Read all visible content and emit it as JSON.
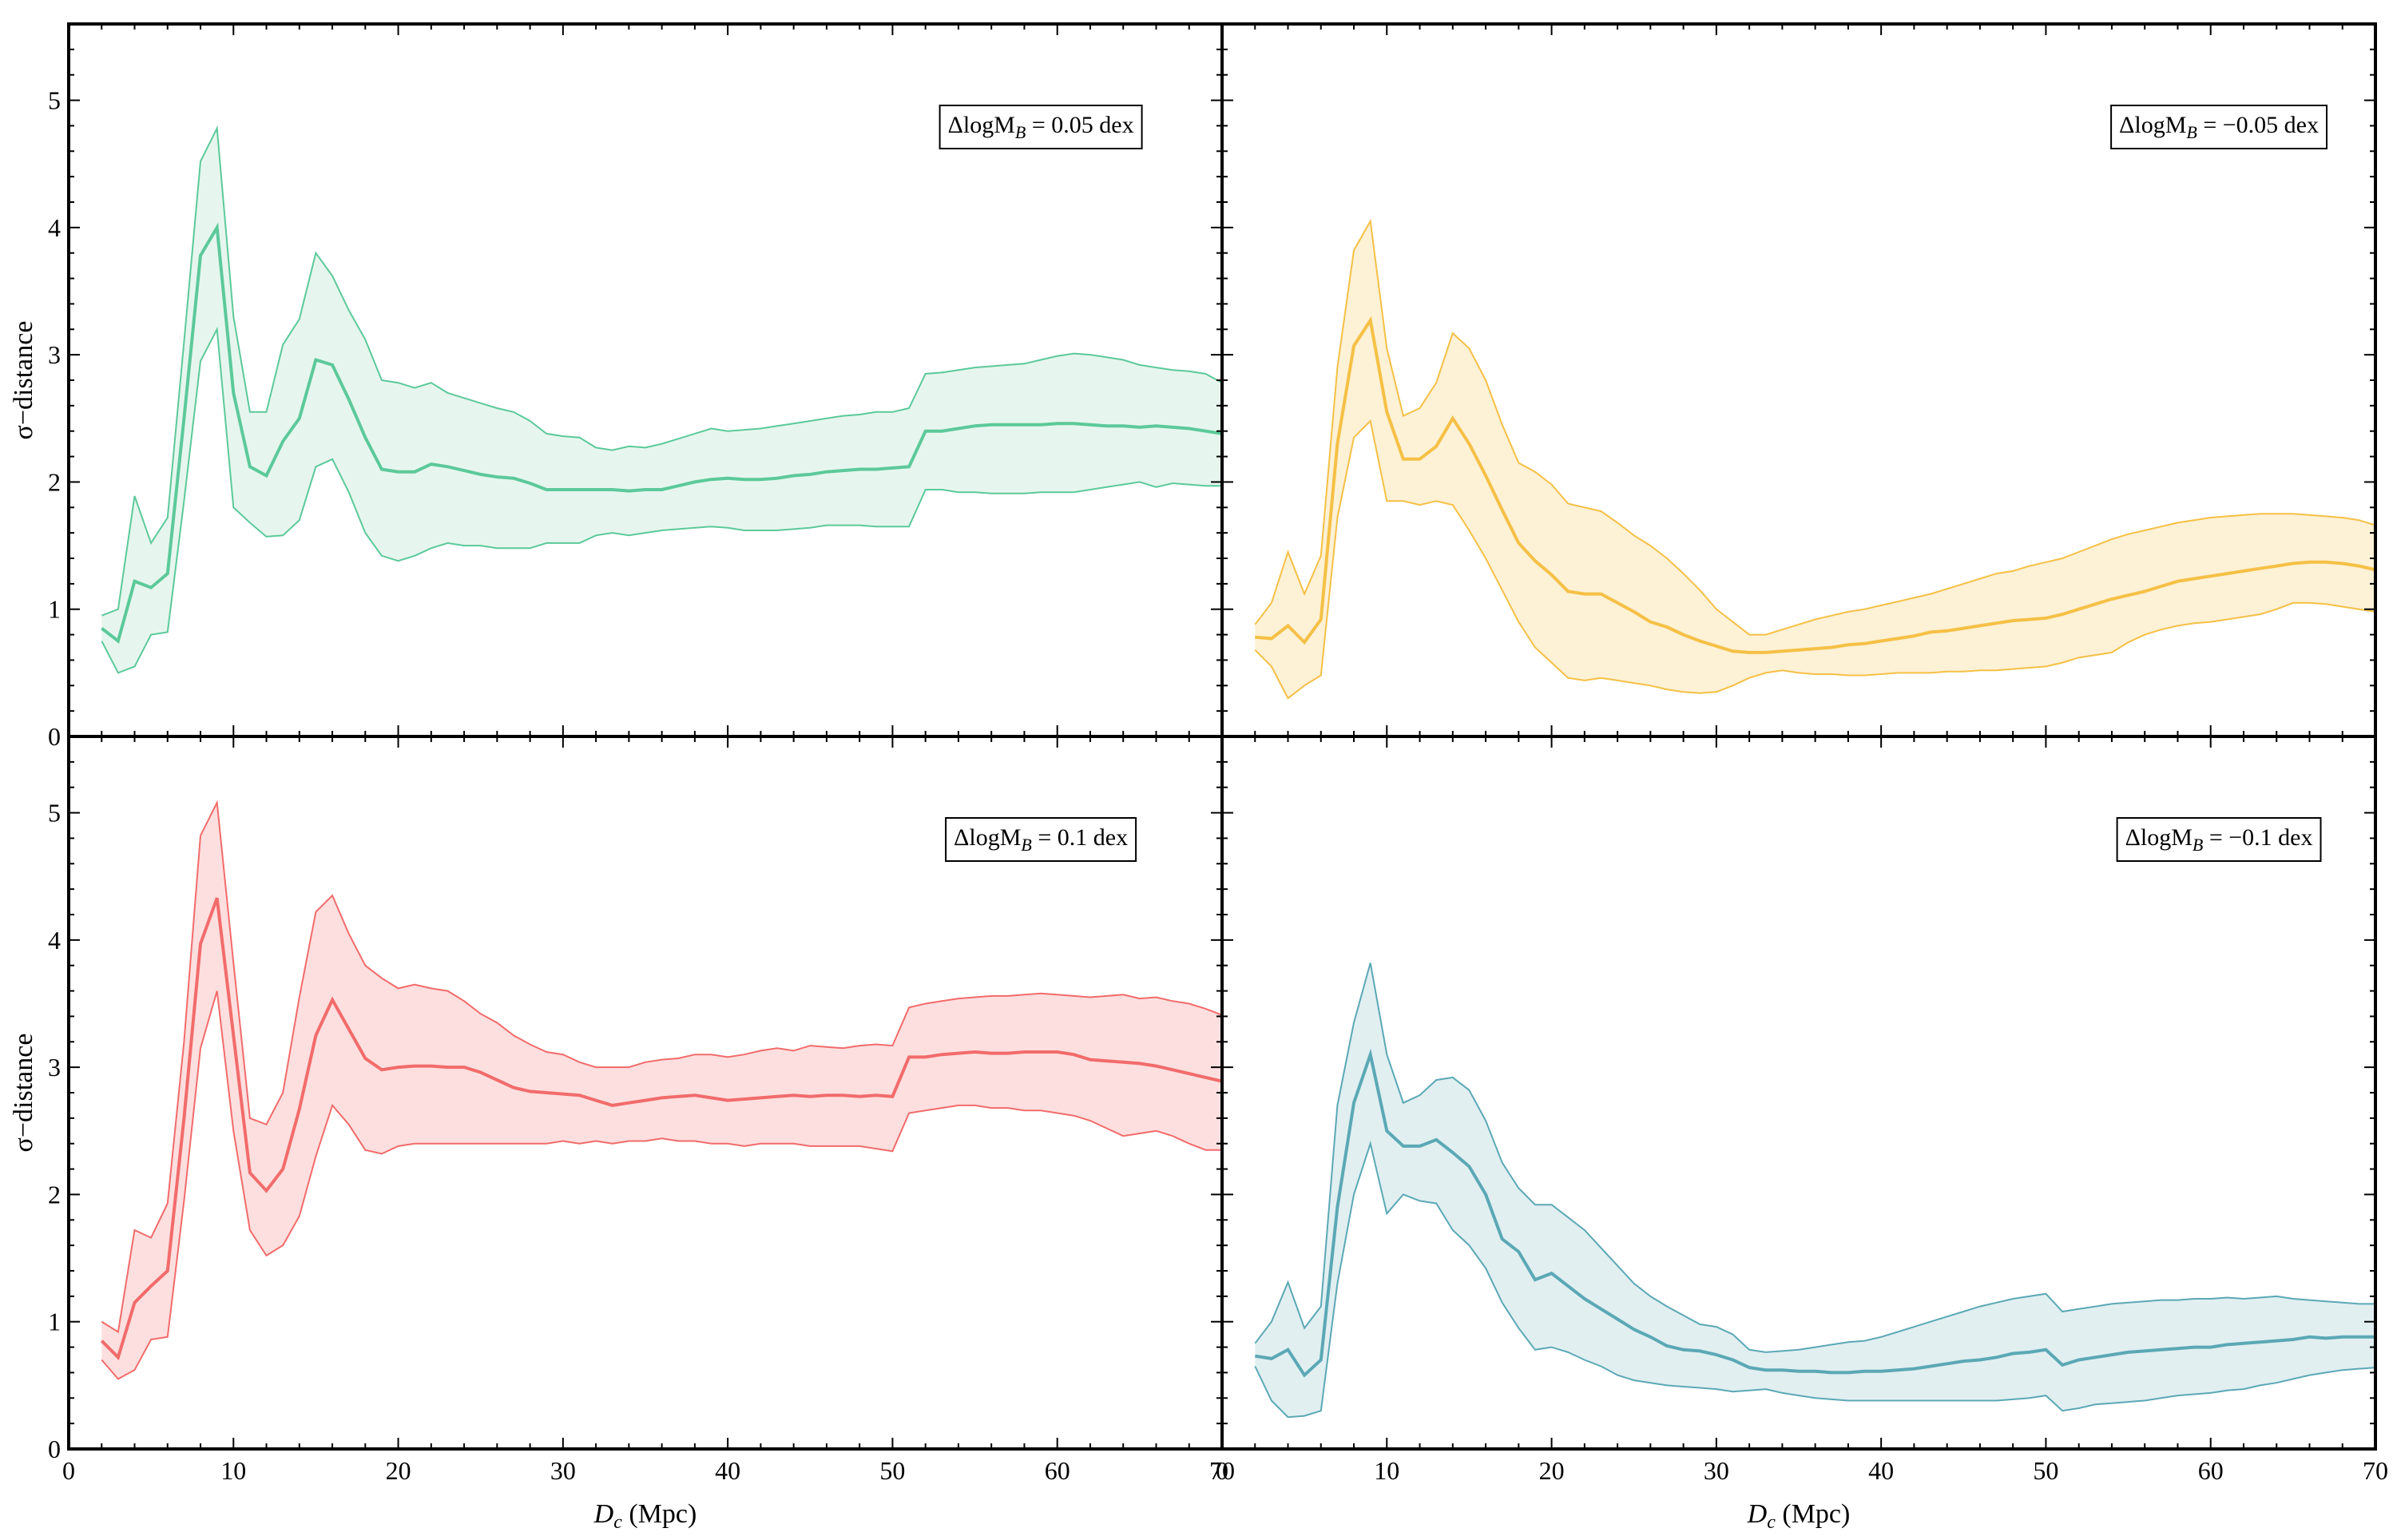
{
  "chart_data": {
    "type": "area",
    "layout": "2x2 grid, shared axes",
    "xlim": [
      0,
      70
    ],
    "ylim": [
      0,
      5.6
    ],
    "x_ticks": [
      "0",
      "10",
      "20",
      "30",
      "40",
      "50",
      "60",
      "70"
    ],
    "y_ticks": [
      "0",
      "1",
      "2",
      "3",
      "4",
      "5"
    ],
    "xlabel": {
      "var": "D",
      "sub": "c",
      "unit": " (Mpc)"
    },
    "ylabel": "σ−distance",
    "x": [
      2,
      3,
      4,
      5,
      6,
      7,
      8,
      9,
      10,
      11,
      12,
      13,
      14,
      15,
      16,
      17,
      18,
      19,
      20,
      21,
      22,
      23,
      24,
      25,
      26,
      27,
      28,
      29,
      30,
      31,
      32,
      33,
      34,
      35,
      36,
      37,
      38,
      39,
      40,
      41,
      42,
      43,
      44,
      45,
      46,
      47,
      48,
      49,
      50,
      51,
      52,
      53,
      54,
      55,
      56,
      57,
      58,
      59,
      60,
      61,
      62,
      63,
      64,
      65,
      66,
      67,
      68,
      69,
      70
    ],
    "panels": [
      {
        "position": "top-left",
        "color": "#5cc99a",
        "fill": "#e6f6ee",
        "annotation": {
          "prefix": "ΔlogM",
          "sub": "B",
          "suffix": " = 0.05 dex"
        },
        "median": [
          0.85,
          0.75,
          1.22,
          1.17,
          1.28,
          2.5,
          3.78,
          4.0,
          2.7,
          2.12,
          2.05,
          2.32,
          2.5,
          2.96,
          2.92,
          2.65,
          2.35,
          2.1,
          2.08,
          2.08,
          2.14,
          2.12,
          2.09,
          2.06,
          2.04,
          2.03,
          1.99,
          1.94,
          1.94,
          1.94,
          1.94,
          1.94,
          1.93,
          1.94,
          1.94,
          1.97,
          2.0,
          2.02,
          2.03,
          2.02,
          2.02,
          2.03,
          2.05,
          2.06,
          2.08,
          2.09,
          2.1,
          2.1,
          2.11,
          2.12,
          2.4,
          2.4,
          2.42,
          2.44,
          2.45,
          2.45,
          2.45,
          2.45,
          2.46,
          2.46,
          2.45,
          2.44,
          2.44,
          2.43,
          2.44,
          2.43,
          2.42,
          2.4,
          2.38
        ],
        "upper": [
          0.95,
          1.0,
          1.89,
          1.52,
          1.72,
          3.1,
          4.52,
          4.78,
          3.3,
          2.55,
          2.55,
          3.08,
          3.28,
          3.8,
          3.62,
          3.35,
          3.12,
          2.8,
          2.78,
          2.74,
          2.78,
          2.7,
          2.66,
          2.62,
          2.58,
          2.55,
          2.48,
          2.38,
          2.36,
          2.35,
          2.27,
          2.25,
          2.28,
          2.27,
          2.3,
          2.34,
          2.38,
          2.42,
          2.4,
          2.41,
          2.42,
          2.44,
          2.46,
          2.48,
          2.5,
          2.52,
          2.53,
          2.55,
          2.55,
          2.58,
          2.85,
          2.86,
          2.88,
          2.9,
          2.91,
          2.92,
          2.93,
          2.96,
          2.99,
          3.01,
          3.0,
          2.98,
          2.96,
          2.92,
          2.9,
          2.88,
          2.87,
          2.85,
          2.78
        ],
        "lower": [
          0.75,
          0.5,
          0.55,
          0.8,
          0.82,
          1.85,
          2.95,
          3.2,
          1.8,
          1.68,
          1.57,
          1.58,
          1.7,
          2.12,
          2.18,
          1.92,
          1.6,
          1.42,
          1.38,
          1.42,
          1.48,
          1.52,
          1.5,
          1.5,
          1.48,
          1.48,
          1.48,
          1.52,
          1.52,
          1.52,
          1.58,
          1.6,
          1.58,
          1.6,
          1.62,
          1.63,
          1.64,
          1.65,
          1.64,
          1.62,
          1.62,
          1.62,
          1.63,
          1.64,
          1.66,
          1.66,
          1.66,
          1.65,
          1.65,
          1.65,
          1.94,
          1.94,
          1.92,
          1.92,
          1.91,
          1.91,
          1.91,
          1.92,
          1.92,
          1.92,
          1.94,
          1.96,
          1.98,
          2.0,
          1.96,
          1.99,
          1.98,
          1.97,
          1.97
        ]
      },
      {
        "position": "top-right",
        "color": "#f5c045",
        "fill": "#fdf1d6",
        "annotation": {
          "prefix": "ΔlogM",
          "sub": "B",
          "suffix": " = −0.05 dex"
        },
        "median": [
          0.78,
          0.77,
          0.87,
          0.74,
          0.92,
          2.3,
          3.07,
          3.27,
          2.55,
          2.18,
          2.18,
          2.28,
          2.5,
          2.3,
          2.05,
          1.78,
          1.52,
          1.38,
          1.27,
          1.14,
          1.12,
          1.12,
          1.05,
          0.98,
          0.9,
          0.86,
          0.8,
          0.75,
          0.71,
          0.67,
          0.66,
          0.66,
          0.67,
          0.68,
          0.69,
          0.7,
          0.72,
          0.73,
          0.75,
          0.77,
          0.79,
          0.82,
          0.83,
          0.85,
          0.87,
          0.89,
          0.91,
          0.92,
          0.93,
          0.96,
          1.0,
          1.04,
          1.08,
          1.11,
          1.14,
          1.18,
          1.22,
          1.24,
          1.26,
          1.28,
          1.3,
          1.32,
          1.34,
          1.36,
          1.37,
          1.37,
          1.36,
          1.34,
          1.31
        ],
        "upper": [
          0.88,
          1.05,
          1.45,
          1.12,
          1.42,
          2.9,
          3.82,
          4.05,
          3.05,
          2.52,
          2.58,
          2.78,
          3.17,
          3.05,
          2.8,
          2.45,
          2.15,
          2.08,
          1.98,
          1.83,
          1.8,
          1.77,
          1.68,
          1.58,
          1.5,
          1.4,
          1.28,
          1.15,
          1.0,
          0.9,
          0.8,
          0.8,
          0.84,
          0.88,
          0.92,
          0.95,
          0.98,
          1.0,
          1.03,
          1.06,
          1.09,
          1.12,
          1.16,
          1.2,
          1.24,
          1.28,
          1.3,
          1.34,
          1.37,
          1.4,
          1.45,
          1.5,
          1.55,
          1.59,
          1.62,
          1.65,
          1.68,
          1.7,
          1.72,
          1.73,
          1.74,
          1.75,
          1.75,
          1.75,
          1.74,
          1.73,
          1.72,
          1.7,
          1.66
        ],
        "lower": [
          0.68,
          0.55,
          0.3,
          0.4,
          0.48,
          1.72,
          2.35,
          2.48,
          1.85,
          1.85,
          1.82,
          1.85,
          1.82,
          1.62,
          1.4,
          1.15,
          0.9,
          0.7,
          0.58,
          0.46,
          0.44,
          0.46,
          0.44,
          0.42,
          0.4,
          0.37,
          0.35,
          0.34,
          0.35,
          0.4,
          0.46,
          0.5,
          0.52,
          0.5,
          0.49,
          0.49,
          0.48,
          0.48,
          0.49,
          0.5,
          0.5,
          0.5,
          0.51,
          0.51,
          0.52,
          0.52,
          0.53,
          0.54,
          0.55,
          0.58,
          0.62,
          0.64,
          0.66,
          0.74,
          0.8,
          0.84,
          0.87,
          0.89,
          0.9,
          0.92,
          0.94,
          0.96,
          1.0,
          1.05,
          1.05,
          1.04,
          1.02,
          1.0,
          0.98
        ]
      },
      {
        "position": "bottom-left",
        "color": "#f26b6b",
        "fill": "#fddfdf",
        "annotation": {
          "prefix": "ΔlogM",
          "sub": "B",
          "suffix": " = 0.1 dex"
        },
        "median": [
          0.85,
          0.72,
          1.15,
          1.28,
          1.4,
          2.6,
          3.97,
          4.33,
          3.25,
          2.17,
          2.03,
          2.2,
          2.67,
          3.25,
          3.53,
          3.3,
          3.07,
          2.98,
          3.0,
          3.01,
          3.01,
          3.0,
          3.0,
          2.96,
          2.9,
          2.84,
          2.81,
          2.8,
          2.79,
          2.78,
          2.74,
          2.7,
          2.72,
          2.74,
          2.76,
          2.77,
          2.78,
          2.76,
          2.74,
          2.75,
          2.76,
          2.77,
          2.78,
          2.77,
          2.78,
          2.78,
          2.77,
          2.78,
          2.77,
          3.08,
          3.08,
          3.1,
          3.11,
          3.12,
          3.11,
          3.11,
          3.12,
          3.12,
          3.12,
          3.1,
          3.06,
          3.05,
          3.04,
          3.03,
          3.01,
          2.98,
          2.95,
          2.92,
          2.89
        ],
        "upper": [
          1.0,
          0.92,
          1.72,
          1.66,
          1.93,
          3.2,
          4.82,
          5.08,
          3.82,
          2.6,
          2.55,
          2.8,
          3.55,
          4.22,
          4.35,
          4.05,
          3.8,
          3.7,
          3.62,
          3.65,
          3.62,
          3.6,
          3.52,
          3.42,
          3.35,
          3.25,
          3.18,
          3.12,
          3.1,
          3.04,
          3.0,
          3.0,
          3.0,
          3.04,
          3.06,
          3.07,
          3.1,
          3.1,
          3.08,
          3.1,
          3.13,
          3.15,
          3.13,
          3.17,
          3.16,
          3.15,
          3.17,
          3.18,
          3.17,
          3.47,
          3.5,
          3.52,
          3.54,
          3.55,
          3.56,
          3.56,
          3.57,
          3.58,
          3.57,
          3.56,
          3.55,
          3.56,
          3.57,
          3.54,
          3.55,
          3.52,
          3.5,
          3.46,
          3.41
        ],
        "lower": [
          0.7,
          0.55,
          0.62,
          0.86,
          0.88,
          1.95,
          3.15,
          3.6,
          2.5,
          1.72,
          1.52,
          1.6,
          1.83,
          2.3,
          2.7,
          2.55,
          2.35,
          2.32,
          2.38,
          2.4,
          2.4,
          2.4,
          2.4,
          2.4,
          2.4,
          2.4,
          2.4,
          2.4,
          2.42,
          2.4,
          2.42,
          2.4,
          2.42,
          2.42,
          2.44,
          2.42,
          2.42,
          2.4,
          2.4,
          2.38,
          2.4,
          2.4,
          2.4,
          2.38,
          2.38,
          2.38,
          2.38,
          2.36,
          2.34,
          2.64,
          2.66,
          2.68,
          2.7,
          2.7,
          2.68,
          2.68,
          2.66,
          2.66,
          2.64,
          2.62,
          2.58,
          2.52,
          2.46,
          2.48,
          2.5,
          2.46,
          2.4,
          2.35,
          2.35
        ]
      },
      {
        "position": "bottom-right",
        "color": "#5ba8b5",
        "fill": "#e1eff1",
        "annotation": {
          "prefix": "ΔlogM",
          "sub": "B",
          "suffix": " = −0.1 dex"
        },
        "median": [
          0.73,
          0.71,
          0.78,
          0.58,
          0.7,
          1.9,
          2.72,
          3.1,
          2.5,
          2.38,
          2.38,
          2.43,
          2.33,
          2.22,
          2.0,
          1.65,
          1.55,
          1.33,
          1.38,
          1.28,
          1.18,
          1.1,
          1.02,
          0.94,
          0.88,
          0.81,
          0.78,
          0.77,
          0.74,
          0.7,
          0.64,
          0.62,
          0.62,
          0.61,
          0.61,
          0.6,
          0.6,
          0.61,
          0.61,
          0.62,
          0.63,
          0.65,
          0.67,
          0.69,
          0.7,
          0.72,
          0.75,
          0.76,
          0.78,
          0.66,
          0.7,
          0.72,
          0.74,
          0.76,
          0.77,
          0.78,
          0.79,
          0.8,
          0.8,
          0.82,
          0.83,
          0.84,
          0.85,
          0.86,
          0.88,
          0.87,
          0.88,
          0.88,
          0.88
        ],
        "upper": [
          0.83,
          1.0,
          1.31,
          0.95,
          1.12,
          2.7,
          3.35,
          3.82,
          3.1,
          2.72,
          2.78,
          2.9,
          2.92,
          2.82,
          2.58,
          2.25,
          2.05,
          1.92,
          1.92,
          1.82,
          1.72,
          1.58,
          1.44,
          1.3,
          1.2,
          1.12,
          1.05,
          0.98,
          0.96,
          0.9,
          0.78,
          0.76,
          0.77,
          0.78,
          0.8,
          0.82,
          0.84,
          0.85,
          0.88,
          0.92,
          0.96,
          1.0,
          1.04,
          1.08,
          1.12,
          1.15,
          1.18,
          1.2,
          1.22,
          1.08,
          1.1,
          1.12,
          1.14,
          1.15,
          1.16,
          1.17,
          1.17,
          1.18,
          1.18,
          1.19,
          1.18,
          1.19,
          1.2,
          1.18,
          1.17,
          1.16,
          1.15,
          1.14,
          1.14
        ],
        "lower": [
          0.65,
          0.38,
          0.25,
          0.26,
          0.3,
          1.3,
          2.0,
          2.4,
          1.85,
          2.0,
          1.95,
          1.93,
          1.72,
          1.6,
          1.42,
          1.15,
          0.95,
          0.78,
          0.8,
          0.76,
          0.7,
          0.65,
          0.58,
          0.54,
          0.52,
          0.5,
          0.49,
          0.48,
          0.47,
          0.45,
          0.46,
          0.47,
          0.44,
          0.42,
          0.4,
          0.39,
          0.38,
          0.38,
          0.38,
          0.38,
          0.38,
          0.38,
          0.38,
          0.38,
          0.38,
          0.38,
          0.39,
          0.4,
          0.42,
          0.3,
          0.32,
          0.35,
          0.36,
          0.37,
          0.38,
          0.4,
          0.42,
          0.43,
          0.44,
          0.46,
          0.47,
          0.5,
          0.52,
          0.55,
          0.58,
          0.6,
          0.62,
          0.63,
          0.64
        ]
      }
    ]
  }
}
